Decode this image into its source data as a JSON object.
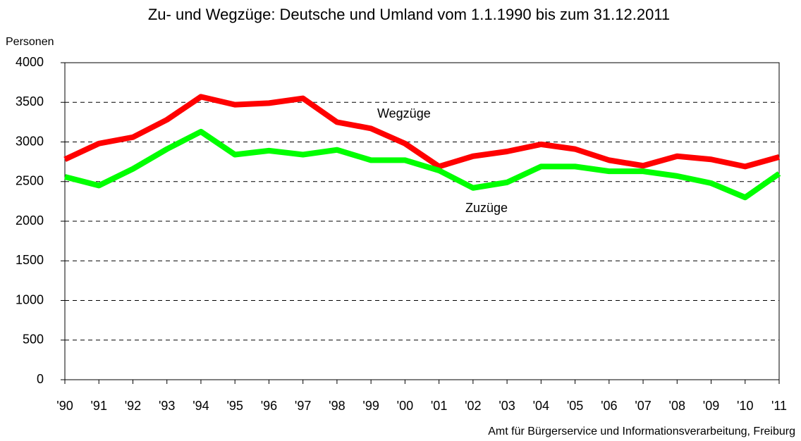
{
  "chart_data": {
    "type": "line",
    "title": "Zu- und Wegzüge: Deutsche und Umland vom 1.1.1990 bis zum 31.12.2011",
    "y_label": "Personen",
    "source": "Amt für Bürgerservice und Informationsverarbeitung, Freiburg",
    "categories": [
      "'90",
      "'91",
      "'92",
      "'93",
      "'94",
      "'95",
      "'96",
      "'97",
      "'98",
      "'99",
      "'00",
      "'01",
      "'02",
      "'03",
      "'04",
      "'05",
      "'06",
      "'07",
      "'08",
      "'09",
      "'10",
      "'11"
    ],
    "series": [
      {
        "name": "Wegzüge",
        "color": "#ff0000",
        "values": [
          2780,
          2980,
          3060,
          3280,
          3570,
          3470,
          3490,
          3550,
          3250,
          3170,
          2980,
          2690,
          2820,
          2880,
          2970,
          2910,
          2770,
          2700,
          2820,
          2780,
          2690,
          2810
        ]
      },
      {
        "name": "Zuzüge",
        "color": "#00ff00",
        "values": [
          2560,
          2450,
          2660,
          2910,
          3130,
          2840,
          2890,
          2840,
          2900,
          2770,
          2770,
          2640,
          2420,
          2490,
          2690,
          2690,
          2630,
          2630,
          2570,
          2480,
          2300,
          2600
        ]
      }
    ],
    "ylim": [
      0,
      4000
    ],
    "yticks": [
      0,
      500,
      1000,
      1500,
      2000,
      2500,
      3000,
      3500,
      4000
    ],
    "grid": true
  }
}
